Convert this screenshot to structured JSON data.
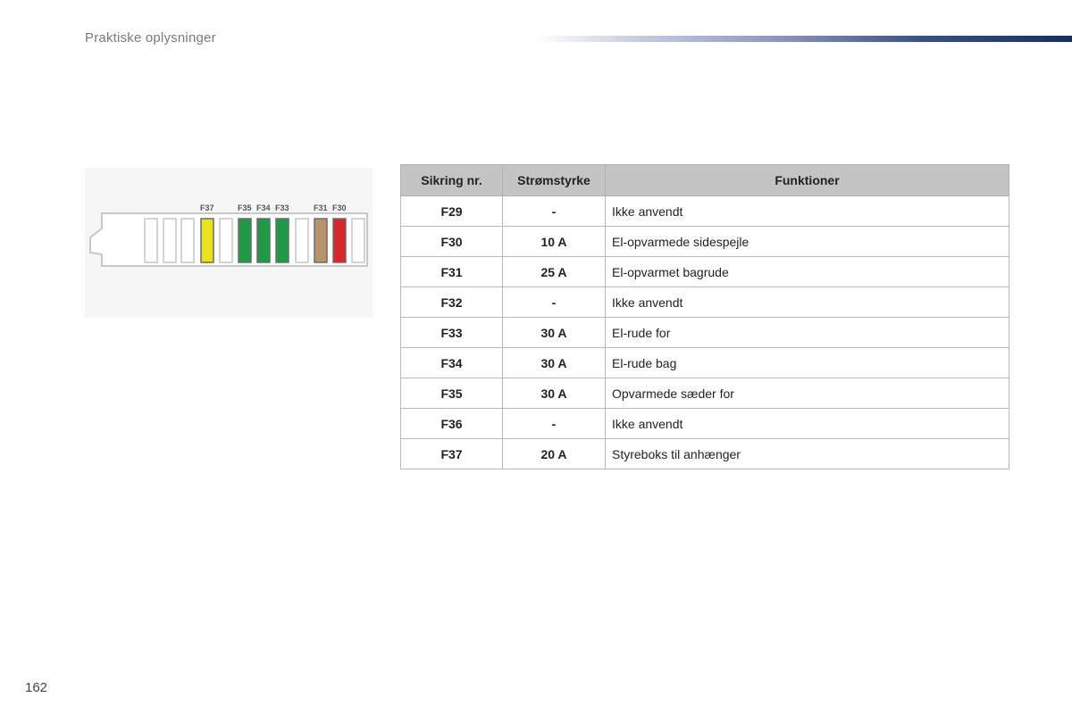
{
  "header": {
    "title": "Praktiske oplysninger"
  },
  "page_number": "162",
  "diagram": {
    "labels": [
      "F37",
      "F35",
      "F34",
      "F33",
      "F31",
      "F30"
    ],
    "slot_colors": [
      "#ffffff",
      "#ffffff",
      "#ffffff",
      "#e8e21a",
      "#ffffff",
      "#1f9a45",
      "#1f9a45",
      "#1f9a45",
      "#ffffff",
      "#b8946c",
      "#d9262b",
      "#ffffff"
    ]
  },
  "table": {
    "headers": [
      "Sikring nr.",
      "Strømstyrke",
      "Funktioner"
    ],
    "rows": [
      {
        "fuse": "F29",
        "amp": "-",
        "func": "Ikke anvendt"
      },
      {
        "fuse": "F30",
        "amp": "10 A",
        "func": "El-opvarmede sidespejle"
      },
      {
        "fuse": "F31",
        "amp": "25 A",
        "func": "El-opvarmet bagrude"
      },
      {
        "fuse": "F32",
        "amp": "-",
        "func": "Ikke anvendt"
      },
      {
        "fuse": "F33",
        "amp": "30 A",
        "func": "El-rude for"
      },
      {
        "fuse": "F34",
        "amp": "30 A",
        "func": "El-rude bag"
      },
      {
        "fuse": "F35",
        "amp": "30 A",
        "func": "Opvarmede sæder for"
      },
      {
        "fuse": "F36",
        "amp": "-",
        "func": "Ikke anvendt"
      },
      {
        "fuse": "F37",
        "amp": "20 A",
        "func": "Styreboks til anhænger"
      }
    ]
  }
}
